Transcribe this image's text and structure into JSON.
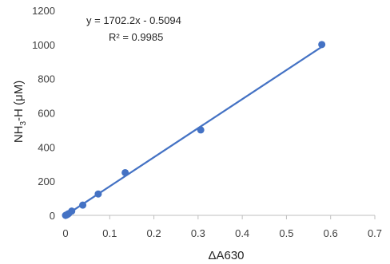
{
  "chart_data": {
    "type": "scatter",
    "xlabel": "ΔA630",
    "ylabel": {
      "main": "NH",
      "sub": "3",
      "rest": "-H  (μM)"
    },
    "xlim": [
      0,
      0.7
    ],
    "ylim": [
      0,
      1200
    ],
    "x_ticks": [
      0,
      0.1,
      0.2,
      0.3,
      0.4,
      0.5,
      0.6,
      0.7
    ],
    "y_ticks": [
      0,
      200,
      400,
      600,
      800,
      1000,
      1200
    ],
    "x_tick_labels": [
      "0",
      "0.1",
      "0.2",
      "0.3",
      "0.4",
      "0.5",
      "0.6",
      "0.7"
    ],
    "y_tick_labels": [
      "0",
      "200",
      "400",
      "600",
      "800",
      "1000",
      "1200"
    ],
    "grid": false,
    "legend": "none",
    "series": [
      {
        "color": "#4472c4",
        "x": [
          0.0,
          0.002,
          0.004,
          0.007,
          0.014,
          0.039,
          0.074,
          0.135,
          0.306,
          0.58
        ],
        "y": [
          0,
          2,
          5,
          10,
          25,
          60,
          125,
          250,
          500,
          1000
        ]
      }
    ],
    "trendline": {
      "slope": 1702.2,
      "intercept": -0.5094,
      "x_range": [
        0,
        0.58
      ],
      "color": "#4472c4"
    },
    "annotations": {
      "equation": "y = 1702.2x - 0.5094",
      "r_squared": "R² = 0.9985"
    }
  }
}
